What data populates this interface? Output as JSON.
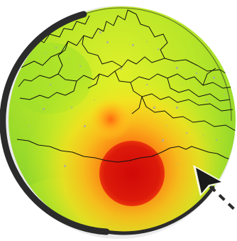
{
  "map": {
    "kind": "circular-heatmap-lens",
    "palette": {
      "background": "#ffffff",
      "low": "#8fdc2a",
      "mid_low": "#e6ec1f",
      "mid": "#ffd21c",
      "mid_high": "#ff9b14",
      "high": "#ff5a0c",
      "peak": "#d60a0a",
      "boundary": "#111111",
      "frame": "#2b2b2b",
      "pointer": "#1a1a1a",
      "noise": "#a9a9a9"
    }
  },
  "icons": {
    "pointer": "cursor-arrow-icon",
    "trail": "dashed-trail"
  }
}
